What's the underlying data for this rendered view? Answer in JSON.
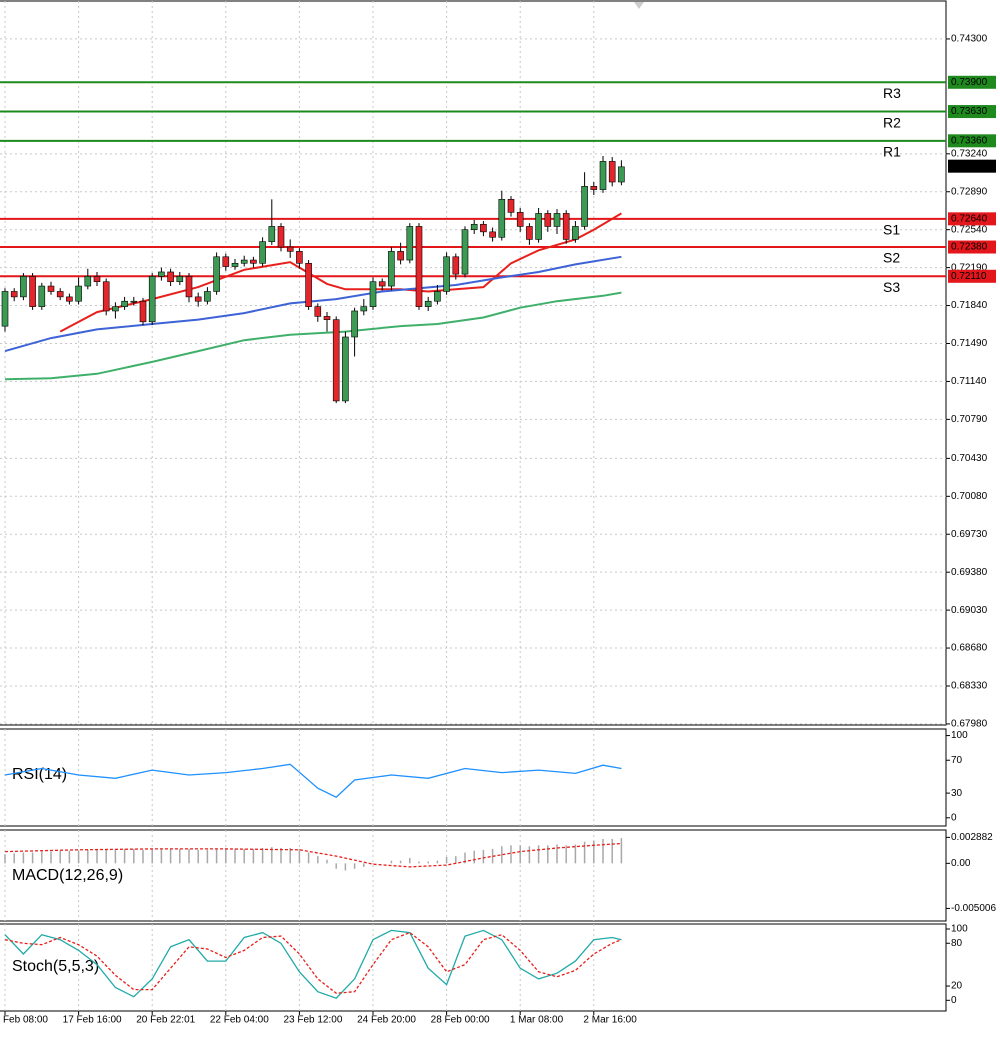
{
  "chart_data": [
    {
      "type": "candlestick",
      "ylim": [
        0.6797,
        0.7465
      ],
      "yticks": [
        {
          "value": 0.743,
          "label": "0.74300"
        },
        {
          "value": 0.7324,
          "label": "0.73240"
        },
        {
          "value": 0.7289,
          "label": "0.72890"
        },
        {
          "value": 0.7254,
          "label": "0.72540"
        },
        {
          "value": 0.7219,
          "label": "0.72190"
        },
        {
          "value": 0.7184,
          "label": "0.71840"
        },
        {
          "value": 0.7149,
          "label": "0.71490"
        },
        {
          "value": 0.7114,
          "label": "0.71140"
        },
        {
          "value": 0.7079,
          "label": "0.70790"
        },
        {
          "value": 0.7043,
          "label": "0.70430"
        },
        {
          "value": 0.7008,
          "label": "0.70080"
        },
        {
          "value": 0.6973,
          "label": "0.69730"
        },
        {
          "value": 0.6938,
          "label": "0.69380"
        },
        {
          "value": 0.6903,
          "label": "0.69030"
        },
        {
          "value": 0.6868,
          "label": "0.68680"
        },
        {
          "value": 0.6833,
          "label": "0.68330"
        },
        {
          "value": 0.6798,
          "label": "0.67980"
        }
      ],
      "xticks": [
        {
          "value": 0,
          "label": "Feb 08:00"
        },
        {
          "value": 8,
          "label": "17 Feb 16:00"
        },
        {
          "value": 16,
          "label": "20 Feb 22:01"
        },
        {
          "value": 24,
          "label": "22 Feb 04:00"
        },
        {
          "value": 32,
          "label": "23 Feb 12:00"
        },
        {
          "value": 40,
          "label": "24 Feb 20:00"
        },
        {
          "value": 48,
          "label": "28 Feb 00:00"
        },
        {
          "value": 56,
          "label": "1 Mar 08:00"
        },
        {
          "value": 64,
          "label": "2 Mar 16:00"
        }
      ],
      "grid": true,
      "up_color": "#3c9a55",
      "down_color": "#e3262c",
      "open": [
        0.7165,
        0.7197,
        0.7192,
        0.7211,
        0.7183,
        0.7202,
        0.7197,
        0.7192,
        0.7188,
        0.7202,
        0.7211,
        0.7206,
        0.7179,
        0.7183,
        0.7188,
        0.7188,
        0.7169,
        0.7211,
        0.7215,
        0.7206,
        0.7211,
        0.7192,
        0.7188,
        0.7197,
        0.7229,
        0.722,
        0.7223,
        0.7226,
        0.7223,
        0.7243,
        0.7257,
        0.7238,
        0.7234,
        0.7223,
        0.7183,
        0.7174,
        0.7171,
        0.7096,
        0.7155,
        0.7179,
        0.7183,
        0.7206,
        0.7202,
        0.7234,
        0.7226,
        0.7257,
        0.7183,
        0.7188,
        0.7197,
        0.7229,
        0.7213,
        0.7254,
        0.7259,
        0.7252,
        0.7247,
        0.7282,
        0.727,
        0.7257,
        0.7245,
        0.7269,
        0.7257,
        0.7269,
        0.7245,
        0.7257,
        0.7294,
        0.7291,
        0.7317,
        0.7298
      ],
      "high": [
        0.72,
        0.72,
        0.7214,
        0.7214,
        0.7205,
        0.7206,
        0.72,
        0.7195,
        0.721,
        0.7218,
        0.7215,
        0.7209,
        0.7187,
        0.7192,
        0.7192,
        0.7191,
        0.7214,
        0.7219,
        0.7218,
        0.7215,
        0.7214,
        0.7196,
        0.7201,
        0.7233,
        0.7232,
        0.7227,
        0.723,
        0.7229,
        0.7247,
        0.7282,
        0.726,
        0.7245,
        0.7237,
        0.7226,
        0.7186,
        0.7178,
        0.7174,
        0.716,
        0.7182,
        0.719,
        0.721,
        0.7209,
        0.7238,
        0.7242,
        0.726,
        0.726,
        0.7192,
        0.7203,
        0.7233,
        0.7232,
        0.7257,
        0.7263,
        0.7262,
        0.7256,
        0.729,
        0.7285,
        0.7274,
        0.726,
        0.7274,
        0.7272,
        0.7273,
        0.7272,
        0.7262,
        0.7307,
        0.7298,
        0.7322,
        0.7321,
        0.7318
      ],
      "low": [
        0.716,
        0.7188,
        0.7189,
        0.718,
        0.718,
        0.7194,
        0.7189,
        0.7185,
        0.7185,
        0.7199,
        0.7202,
        0.7175,
        0.7172,
        0.718,
        0.7184,
        0.7166,
        0.7166,
        0.7207,
        0.7202,
        0.7203,
        0.7187,
        0.7183,
        0.7185,
        0.7194,
        0.7216,
        0.7217,
        0.722,
        0.7219,
        0.722,
        0.724,
        0.7234,
        0.7228,
        0.7218,
        0.718,
        0.7169,
        0.716,
        0.7094,
        0.7094,
        0.7137,
        0.7175,
        0.718,
        0.7198,
        0.7198,
        0.7222,
        0.7223,
        0.718,
        0.7179,
        0.7185,
        0.7194,
        0.7208,
        0.721,
        0.725,
        0.7248,
        0.7243,
        0.7244,
        0.7266,
        0.7252,
        0.724,
        0.7242,
        0.7252,
        0.725,
        0.7241,
        0.7242,
        0.7254,
        0.7286,
        0.7288,
        0.7294,
        0.7295
      ],
      "close": [
        0.7197,
        0.7192,
        0.7211,
        0.7183,
        0.7202,
        0.7197,
        0.7192,
        0.7188,
        0.7202,
        0.7211,
        0.7206,
        0.7179,
        0.7183,
        0.7188,
        0.7188,
        0.7169,
        0.7211,
        0.7215,
        0.7206,
        0.7211,
        0.7192,
        0.7188,
        0.7197,
        0.7229,
        0.722,
        0.7223,
        0.7226,
        0.7223,
        0.7243,
        0.7257,
        0.7238,
        0.7234,
        0.7223,
        0.7183,
        0.7174,
        0.7171,
        0.7096,
        0.7155,
        0.7179,
        0.7183,
        0.7206,
        0.7202,
        0.7234,
        0.7226,
        0.7257,
        0.7183,
        0.7188,
        0.7197,
        0.7229,
        0.7213,
        0.7254,
        0.7259,
        0.7252,
        0.7247,
        0.7282,
        0.727,
        0.7257,
        0.7245,
        0.7269,
        0.7257,
        0.7269,
        0.7245,
        0.7257,
        0.7294,
        0.7291,
        0.7317,
        0.7298,
        0.7312
      ],
      "lines": [
        {
          "color": "#e8201c",
          "index": [
            6,
            10,
            16,
            21,
            26,
            31,
            35,
            37,
            43,
            46,
            49,
            52,
            55,
            58,
            62,
            64,
            67
          ],
          "values": [
            0.716,
            0.7178,
            0.719,
            0.7201,
            0.7217,
            0.7224,
            0.7204,
            0.7199,
            0.7199,
            0.7197,
            0.7199,
            0.7201,
            0.7223,
            0.7235,
            0.7245,
            0.7254,
            0.7269
          ]
        },
        {
          "color": "#3d63d6",
          "index": [
            0,
            5,
            10,
            16,
            21,
            26,
            31,
            36,
            41,
            45,
            49,
            54,
            58,
            62,
            67
          ],
          "values": [
            0.7142,
            0.7154,
            0.7162,
            0.7167,
            0.7171,
            0.7177,
            0.7186,
            0.719,
            0.7197,
            0.72,
            0.7203,
            0.721,
            0.7215,
            0.7222,
            0.7229
          ]
        },
        {
          "color": "#3fb06a",
          "index": [
            0,
            5,
            10,
            16,
            21,
            26,
            31,
            37,
            43,
            47,
            52,
            56,
            60,
            65,
            67
          ],
          "values": [
            0.7116,
            0.7117,
            0.7121,
            0.7132,
            0.7142,
            0.7152,
            0.7157,
            0.716,
            0.7165,
            0.7167,
            0.7173,
            0.7182,
            0.7188,
            0.7193,
            0.7196
          ]
        }
      ],
      "levels": [
        {
          "name": "R3",
          "value": 0.739,
          "label": "0.73900",
          "color": "#1e8a1e"
        },
        {
          "name": "R2",
          "value": 0.7363,
          "label": "0.73630",
          "color": "#1e8a1e"
        },
        {
          "name": "R1",
          "value": 0.7336,
          "label": "0.73360",
          "color": "#1e8a1e"
        },
        {
          "name": "S1",
          "value": 0.7264,
          "label": "0.72640",
          "color": "#e3161c"
        },
        {
          "name": "S2",
          "value": 0.7238,
          "label": "0.72380",
          "color": "#e3161c"
        },
        {
          "name": "S3",
          "value": 0.7211,
          "label": "0.72110",
          "color": "#e3161c"
        }
      ],
      "last_price": {
        "value": 0.73126,
        "label": "0.73126"
      }
    },
    {
      "type": "line",
      "title": "RSI(14)",
      "color": "#1e90ff",
      "ylim": [
        -10,
        108
      ],
      "yticks": [
        100,
        70,
        30,
        0
      ],
      "index": [
        0,
        4,
        8,
        12,
        16,
        20,
        24,
        28,
        31,
        34,
        36,
        38,
        42,
        46,
        50,
        54,
        58,
        62,
        65,
        67
      ],
      "values": [
        52,
        60,
        52,
        48,
        58,
        52,
        55,
        60,
        65,
        36,
        25,
        46,
        52,
        48,
        60,
        55,
        58,
        54,
        64,
        60
      ]
    },
    {
      "type": "macd",
      "title": "MACD(12,26,9)",
      "ylim": [
        -0.0064,
        0.0037
      ],
      "yticks": [
        0.002882,
        {
          "value": 0,
          "label": "0.00"
        },
        -0.005006
      ],
      "histogram_color": "#a8a8a8",
      "histogram": [
        0.001,
        0.0011,
        0.0012,
        0.0012,
        0.0013,
        0.0013,
        0.0014,
        0.0014,
        0.0014,
        0.0015,
        0.0015,
        0.0015,
        0.0015,
        0.0016,
        0.0016,
        0.0015,
        0.0016,
        0.0016,
        0.0016,
        0.0016,
        0.0016,
        0.0015,
        0.0015,
        0.0016,
        0.0016,
        0.0016,
        0.0016,
        0.0016,
        0.0017,
        0.0018,
        0.0017,
        0.0017,
        0.0016,
        0.0012,
        0.0008,
        0.0004,
        -0.0006,
        -0.0008,
        -0.0006,
        -0.0004,
        -0.0001,
        0.0,
        0.0003,
        0.0003,
        0.0006,
        0.0002,
        0.0002,
        0.0003,
        0.0007,
        0.0008,
        0.0012,
        0.0014,
        0.0015,
        0.0016,
        0.0019,
        0.002,
        0.002,
        0.0019,
        0.002,
        0.002,
        0.0021,
        0.002,
        0.0021,
        0.0024,
        0.0025,
        0.0027,
        0.0027,
        0.0028
      ],
      "signal": {
        "color": "#e8201c",
        "index": [
          0,
          8,
          16,
          24,
          32,
          36,
          40,
          44,
          48,
          52,
          56,
          60,
          64,
          67
        ],
        "values": [
          0.0013,
          0.0015,
          0.0016,
          0.0016,
          0.0015,
          0.0008,
          -0.0001,
          -0.0004,
          -0.0002,
          0.0006,
          0.0013,
          0.0017,
          0.002,
          0.0022
        ]
      }
    },
    {
      "type": "stochastic",
      "title": "Stoch(5,5,3)",
      "ylim": [
        -15,
        107
      ],
      "yticks": [
        100,
        80,
        20,
        0
      ],
      "index": [
        0,
        2,
        4,
        6,
        8,
        10,
        12,
        14,
        16,
        18,
        20,
        22,
        24,
        26,
        28,
        30,
        32,
        34,
        36,
        38,
        40,
        42,
        44,
        46,
        48,
        50,
        52,
        54,
        56,
        58,
        60,
        62,
        64,
        66,
        67
      ],
      "main": {
        "color": "#20aaa8",
        "values": [
          92,
          65,
          92,
          85,
          70,
          50,
          18,
          5,
          30,
          75,
          85,
          55,
          55,
          88,
          95,
          80,
          40,
          12,
          3,
          30,
          85,
          98,
          95,
          45,
          22,
          90,
          98,
          85,
          45,
          30,
          38,
          55,
          85,
          88,
          85
        ]
      },
      "signal": {
        "color": "#e8201c",
        "values": [
          85,
          80,
          78,
          88,
          78,
          62,
          35,
          15,
          15,
          45,
          75,
          72,
          60,
          70,
          88,
          90,
          65,
          30,
          10,
          12,
          50,
          85,
          95,
          75,
          40,
          50,
          85,
          92,
          70,
          40,
          33,
          42,
          65,
          80,
          85
        ]
      }
    }
  ]
}
